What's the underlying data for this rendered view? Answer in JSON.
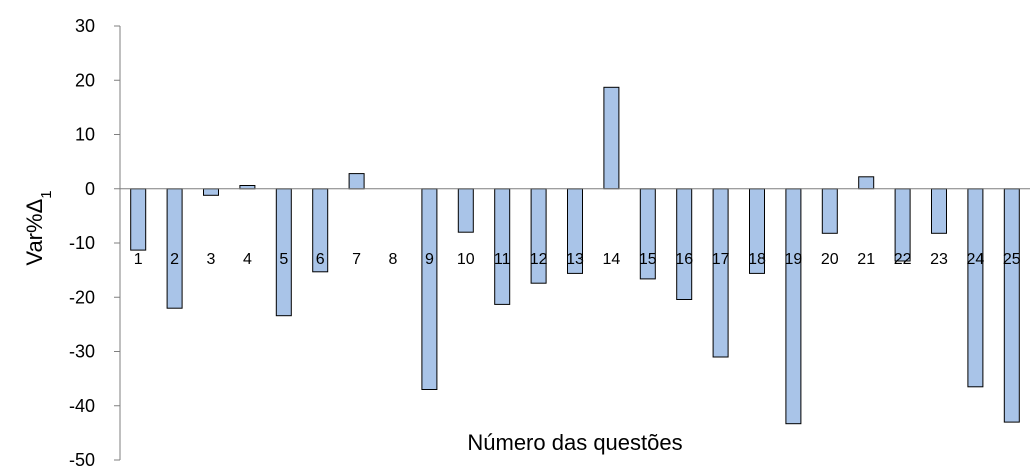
{
  "chart_data": {
    "type": "bar",
    "title": "",
    "xlabel": "Número das questões",
    "ylabel": {
      "text": "Var%Δ",
      "subscript": "1"
    },
    "ylim": [
      -50,
      30
    ],
    "yticks": [
      "30",
      "20",
      "10",
      "0",
      "-10",
      "-20",
      "-30",
      "-40",
      "-50"
    ],
    "grid": false,
    "legend": "none",
    "colors": {
      "bar_fill": "#a9c4e8",
      "bar_stroke": "#000000",
      "axis": "#7f7f7f"
    },
    "categories": [
      "1",
      "2",
      "3",
      "4",
      "5",
      "6",
      "7",
      "8",
      "9",
      "10",
      "11",
      "12",
      "13",
      "14",
      "15",
      "16",
      "17",
      "18",
      "19",
      "20",
      "21",
      "22",
      "23",
      "24",
      "25"
    ],
    "values": [
      -11.3,
      -22.0,
      -1.2,
      0.6,
      -23.4,
      -15.3,
      2.8,
      0.0,
      -37.0,
      -8.0,
      -21.3,
      -17.4,
      -15.6,
      18.7,
      -16.6,
      -20.4,
      -31.0,
      -15.6,
      -43.3,
      -8.2,
      2.2,
      -13.3,
      -8.2,
      -36.5,
      -43.0
    ]
  }
}
